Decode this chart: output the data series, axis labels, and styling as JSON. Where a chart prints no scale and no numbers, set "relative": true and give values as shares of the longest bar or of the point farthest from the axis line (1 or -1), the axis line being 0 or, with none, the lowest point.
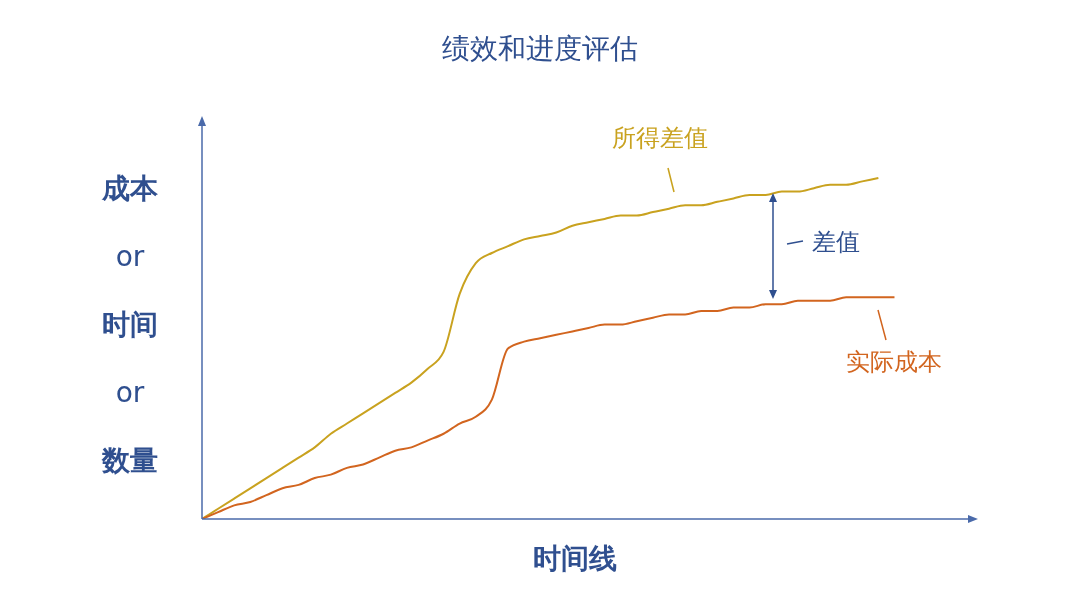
{
  "chart_data": {
    "type": "line",
    "title": "绩效和进度评估",
    "xlabel": "时间线",
    "ylabel": "成本 or 时间 or 数量",
    "relative": true,
    "grid": false,
    "legend": "right",
    "marker": "none",
    "line_style": "solid",
    "annotations": [
      "差值"
    ],
    "categories": [
      null,
      null,
      null,
      null,
      null,
      null,
      null,
      null,
      null,
      null,
      null,
      null,
      null,
      null,
      null,
      null,
      null,
      null,
      null,
      null,
      null,
      null,
      null,
      null,
      null,
      null,
      null,
      null,
      null,
      null,
      null,
      null,
      null,
      null,
      null,
      null,
      null,
      null,
      null,
      null,
      null,
      null,
      null,
      null,
      null,
      null,
      null,
      null,
      null
    ],
    "series": [
      {
        "name": "所得差值",
        "color": "#c9a21f",
        "values": [
          0,
          0.03,
          0.06,
          0.09,
          0.12,
          0.15,
          0.18,
          0.21,
          0.25,
          0.28,
          0.31,
          0.34,
          0.37,
          0.4,
          0.44,
          0.49,
          0.66,
          0.75,
          0.78,
          0.8,
          0.82,
          0.83,
          0.84,
          0.86,
          0.87,
          0.88,
          0.89,
          0.89,
          0.9,
          0.91,
          0.92,
          0.92,
          0.93,
          0.94,
          0.95,
          0.95,
          0.96,
          0.96,
          0.97,
          0.98,
          0.98,
          0.99,
          1,
          null,
          null,
          null,
          null,
          null,
          null
        ]
      },
      {
        "name": "实际成本",
        "color": "#d2651f",
        "values": [
          0,
          0.02,
          0.04,
          0.05,
          0.07,
          0.09,
          0.1,
          0.12,
          0.13,
          0.15,
          0.16,
          0.18,
          0.2,
          0.21,
          0.23,
          0.25,
          0.28,
          0.3,
          0.35,
          0.5,
          0.52,
          0.53,
          0.54,
          0.55,
          0.56,
          0.57,
          0.57,
          0.58,
          0.59,
          0.6,
          0.6,
          0.61,
          0.61,
          0.62,
          0.62,
          0.63,
          0.63,
          0.64,
          0.64,
          0.64,
          0.65,
          0.65,
          0.65,
          0.65,
          null,
          null,
          null,
          null,
          null
        ]
      }
    ]
  }
}
